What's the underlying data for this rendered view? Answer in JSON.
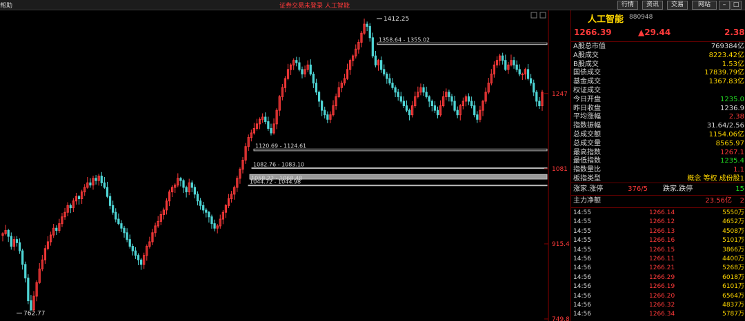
{
  "topbar": {
    "menu_help": "帮助",
    "title": "证券交易未登录  人工智能",
    "buttons": [
      "行情",
      "资讯",
      "交易",
      "网站"
    ],
    "window_controls": [
      "minimize-icon",
      "maximize-icon",
      "close-icon"
    ]
  },
  "chart_data": {
    "type": "candlestick",
    "title": "",
    "y_axis_labels": [
      "1247",
      "1081",
      "915.4",
      "749.8"
    ],
    "y_axis_values": [
      1247,
      1081,
      915.4,
      749.8
    ],
    "ylim": [
      749.8,
      1412.25
    ],
    "high_label": "1412.25",
    "high_value": 1412.25,
    "low_label": "762.77",
    "low_value": 762.77,
    "gap_bands": [
      {
        "label": "1358.64 - 1355.02",
        "low": 1355.02,
        "high": 1358.64
      },
      {
        "label": "1120.69 - 1124.61",
        "low": 1120.69,
        "high": 1124.61
      },
      {
        "label": "1082.76 - 1083.10",
        "low": 1082.76,
        "high": 1083.1
      },
      {
        "label": "1058.22 - 1068.48",
        "low": 1058.22,
        "high": 1068.48
      },
      {
        "label": "1044.72 - 1044.98",
        "low": 1044.72,
        "high": 1044.98
      }
    ],
    "up_color": "#ff3a3a",
    "down_color": "#4fd5d5",
    "closes": [
      938,
      945,
      932,
      910,
      925,
      918,
      900,
      870,
      840,
      790,
      770,
      800,
      830,
      860,
      880,
      905,
      920,
      935,
      950,
      945,
      960,
      975,
      985,
      1000,
      995,
      1010,
      1020,
      1015,
      1030,
      1040,
      1050,
      1045,
      1060,
      1055,
      1065,
      1050,
      1040,
      1020,
      1000,
      985,
      970,
      960,
      950,
      940,
      925,
      910,
      900,
      890,
      880,
      870,
      890,
      910,
      920,
      940,
      955,
      965,
      980,
      990,
      1010,
      1030,
      1040,
      1045,
      1060,
      1055,
      1040,
      1030,
      1050,
      1040,
      1025,
      1010,
      1000,
      990,
      985,
      975,
      960,
      950,
      955,
      970,
      985,
      1000,
      1015,
      1025,
      1040,
      1060,
      1080,
      1100,
      1130,
      1150,
      1160,
      1170,
      1180,
      1190,
      1195,
      1185,
      1170,
      1160,
      1180,
      1210,
      1240,
      1260,
      1280,
      1300,
      1310,
      1320,
      1315,
      1300,
      1290,
      1300,
      1310,
      1290,
      1270,
      1250,
      1230,
      1210,
      1200,
      1190,
      1200,
      1220,
      1240,
      1260,
      1270,
      1280,
      1300,
      1320,
      1330,
      1345,
      1360,
      1380,
      1400,
      1395,
      1370,
      1330,
      1310,
      1320,
      1300,
      1290,
      1280,
      1270,
      1260,
      1250,
      1240,
      1230,
      1220,
      1210,
      1200,
      1220,
      1240,
      1250,
      1260,
      1250,
      1240,
      1230,
      1220,
      1210,
      1200,
      1220,
      1240,
      1250,
      1240,
      1230,
      1210,
      1200,
      1220,
      1230,
      1240,
      1230,
      1220,
      1200,
      1190,
      1210,
      1230,
      1250,
      1270,
      1290,
      1310,
      1320,
      1330,
      1320,
      1300,
      1310,
      1320,
      1310,
      1300,
      1290,
      1290,
      1300,
      1280,
      1270,
      1250,
      1230,
      1220,
      1250
    ]
  },
  "panel": {
    "title": "人工智能",
    "code": "880948",
    "price": "1266.39",
    "change": "▲29.44",
    "change_pct": "2.38",
    "rows": [
      {
        "label": "A股总市值",
        "value": "769384亿",
        "color": "#d8d8d8"
      },
      {
        "label": "A股成交",
        "value": "8223.42亿",
        "color": "#ffd700"
      },
      {
        "label": "B股成交",
        "value": "1.53亿",
        "color": "#ffd700"
      },
      {
        "label": "国债成交",
        "value": "17839.79亿",
        "color": "#ffd700"
      },
      {
        "label": "基金成交",
        "value": "1367.83亿",
        "color": "#ffd700"
      },
      {
        "label": "权证成交",
        "value": "",
        "color": "#ffd700"
      },
      {
        "label": "今日开盘",
        "value": "1235.0",
        "color": "#22dd22"
      },
      {
        "label": "昨日收盘",
        "value": "1236.9",
        "color": "#d8d8d8"
      },
      {
        "label": "平均涨幅",
        "value": "2.38",
        "color": "#ff3a3a"
      },
      {
        "label": "指数振幅",
        "value": "31.64/2.56",
        "color": "#d8d8d8"
      },
      {
        "label": "总成交额",
        "value": "1154.06亿",
        "color": "#ffd700"
      },
      {
        "label": "总成交量",
        "value": "8565.97",
        "color": "#ffd700"
      },
      {
        "label": "最高指数",
        "value": "1267.1",
        "color": "#ff3a3a"
      },
      {
        "label": "最低指数",
        "value": "1235.4",
        "color": "#22dd22"
      },
      {
        "label": "指数量比",
        "value": "1.1",
        "color": "#ff3a3a"
      },
      {
        "label": "板指类型",
        "value": "概念 等权 成份股1",
        "color": "#ffd700"
      }
    ],
    "breadth": {
      "label1": "涨家.涨停",
      "value1": "376/5",
      "label2": "跌家.跌停",
      "value2": "15"
    },
    "main_flow": {
      "label": "主力净额",
      "value": "23.56亿",
      "value2": "2"
    },
    "ticks": [
      {
        "time": "14:55",
        "price": "1266.14",
        "vol": "5550万"
      },
      {
        "time": "14:55",
        "price": "1266.12",
        "vol": "4652万"
      },
      {
        "time": "14:55",
        "price": "1266.13",
        "vol": "4508万"
      },
      {
        "time": "14:55",
        "price": "1266.16",
        "vol": "5101万"
      },
      {
        "time": "14:55",
        "price": "1266.15",
        "vol": "3866万"
      },
      {
        "time": "14:56",
        "price": "1266.11",
        "vol": "4400万"
      },
      {
        "time": "14:56",
        "price": "1266.21",
        "vol": "5268万"
      },
      {
        "time": "14:56",
        "price": "1266.29",
        "vol": "6018万"
      },
      {
        "time": "14:56",
        "price": "1266.19",
        "vol": "6101万"
      },
      {
        "time": "14:56",
        "price": "1266.20",
        "vol": "6564万"
      },
      {
        "time": "14:56",
        "price": "1266.32",
        "vol": "4837万"
      },
      {
        "time": "14:56",
        "price": "1266.34",
        "vol": "5787万"
      }
    ]
  }
}
